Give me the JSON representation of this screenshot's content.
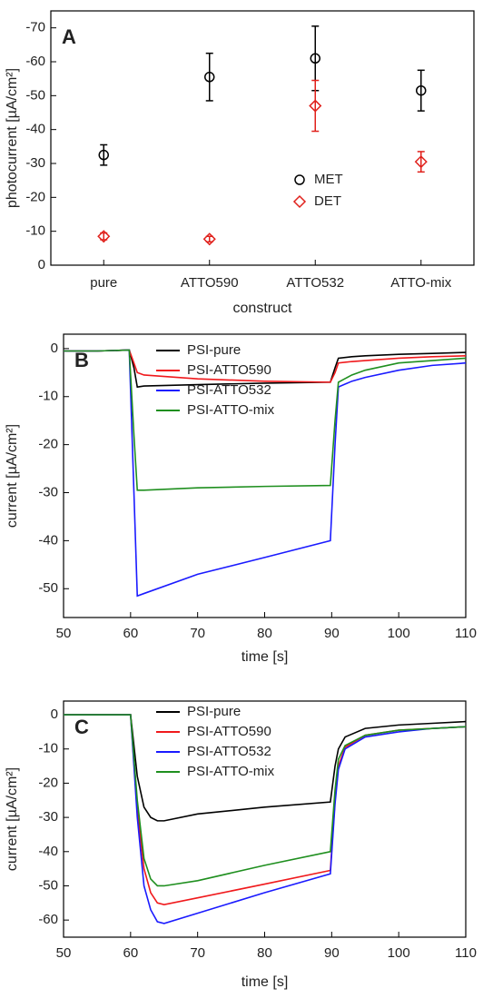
{
  "chart_data": [
    {
      "type": "scatter",
      "panel_label": "A",
      "x_label": "construct",
      "y_label": "photocurrent [µA/cm²]",
      "categories": [
        "pure",
        "ATTO590",
        "ATTO532",
        "ATTO-mix"
      ],
      "ylim": [
        0,
        -75
      ],
      "yticks": [
        0,
        -10,
        -20,
        -30,
        -40,
        -50,
        -60,
        -70
      ],
      "series": [
        {
          "name": "MET",
          "color": "#000000",
          "marker": "circle",
          "values": [
            -32.5,
            -55.5,
            -61,
            -51.5
          ],
          "errors": [
            3,
            7,
            9.5,
            6
          ]
        },
        {
          "name": "DET",
          "color": "#e0201b",
          "marker": "diamond",
          "values": [
            -8.5,
            -7.7,
            -47,
            -30.5
          ],
          "errors": [
            1,
            0.8,
            7.5,
            3
          ]
        }
      ]
    },
    {
      "type": "line",
      "panel_label": "B",
      "x_label": "time [s]",
      "y_label": "current [µA/cm²]",
      "xlim": [
        50,
        110
      ],
      "xticks": [
        50,
        60,
        70,
        80,
        90,
        100,
        110
      ],
      "ylim": [
        -56,
        3
      ],
      "yticks": [
        0,
        -10,
        -20,
        -30,
        -40,
        -50
      ],
      "x": [
        50,
        55,
        59.8,
        60.5,
        61,
        62,
        70,
        80,
        89.8,
        90.5,
        91,
        93,
        95,
        100,
        105,
        110
      ],
      "series": [
        {
          "name": "PSI-pure",
          "color": "#000000",
          "values": [
            -0.5,
            -0.5,
            -0.3,
            -4,
            -8,
            -7.8,
            -7.5,
            -7.2,
            -7,
            -4,
            -2,
            -1.7,
            -1.5,
            -1.2,
            -1,
            -0.8
          ]
        },
        {
          "name": "PSI-ATTO590",
          "color": "#f0191c",
          "values": [
            -0.5,
            -0.5,
            -0.3,
            -3,
            -5,
            -5.5,
            -6.3,
            -6.8,
            -7,
            -5,
            -3,
            -2.7,
            -2.5,
            -2,
            -1.7,
            -1.5
          ]
        },
        {
          "name": "PSI-ATTO532",
          "color": "#1a1aff",
          "values": [
            -0.5,
            -0.5,
            -0.3,
            -30,
            -51.5,
            -51,
            -47,
            -43.5,
            -40,
            -20,
            -8,
            -6.8,
            -6,
            -4.5,
            -3.5,
            -3
          ]
        },
        {
          "name": "PSI-ATTO-mix",
          "color": "#1f8f1f",
          "values": [
            -0.5,
            -0.5,
            -0.3,
            -18,
            -29.5,
            -29.5,
            -29,
            -28.7,
            -28.5,
            -15,
            -7,
            -5.5,
            -4.5,
            -3,
            -2.5,
            -2
          ]
        }
      ]
    },
    {
      "type": "line",
      "panel_label": "C",
      "x_label": "time [s]",
      "y_label": "current [µA/cm²]",
      "xlim": [
        50,
        110
      ],
      "xticks": [
        50,
        60,
        70,
        80,
        90,
        100,
        110
      ],
      "ylim": [
        -65,
        4
      ],
      "yticks": [
        0,
        -10,
        -20,
        -30,
        -40,
        -50,
        -60
      ],
      "x": [
        50,
        55,
        60,
        61,
        62,
        63,
        64,
        65,
        70,
        80,
        89.8,
        90.5,
        91,
        92,
        95,
        100,
        105,
        110
      ],
      "series": [
        {
          "name": "PSI-pure",
          "color": "#000000",
          "values": [
            0,
            0,
            0,
            -18,
            -27,
            -30,
            -31,
            -31,
            -29,
            -27,
            -25.5,
            -15,
            -10,
            -6.5,
            -4,
            -3,
            -2.5,
            -2
          ]
        },
        {
          "name": "PSI-ATTO590",
          "color": "#f0191c",
          "values": [
            0,
            0,
            0,
            -28,
            -45,
            -52,
            -55,
            -55.5,
            -53.5,
            -49.5,
            -45.5,
            -25,
            -15,
            -9.5,
            -6,
            -4.5,
            -4,
            -3.5
          ]
        },
        {
          "name": "PSI-ATTO532",
          "color": "#1a1aff",
          "values": [
            0,
            0,
            0,
            -30,
            -50,
            -57,
            -60.5,
            -61,
            -58,
            -52,
            -46.5,
            -26,
            -16,
            -10,
            -6.5,
            -5,
            -4,
            -3.5
          ]
        },
        {
          "name": "PSI-ATTO-mix",
          "color": "#1f8f1f",
          "values": [
            0,
            0,
            0,
            -25,
            -42,
            -48,
            -50,
            -50,
            -48.5,
            -44,
            -40,
            -22,
            -13,
            -9,
            -6,
            -4.5,
            -4,
            -3.5
          ]
        }
      ]
    }
  ]
}
